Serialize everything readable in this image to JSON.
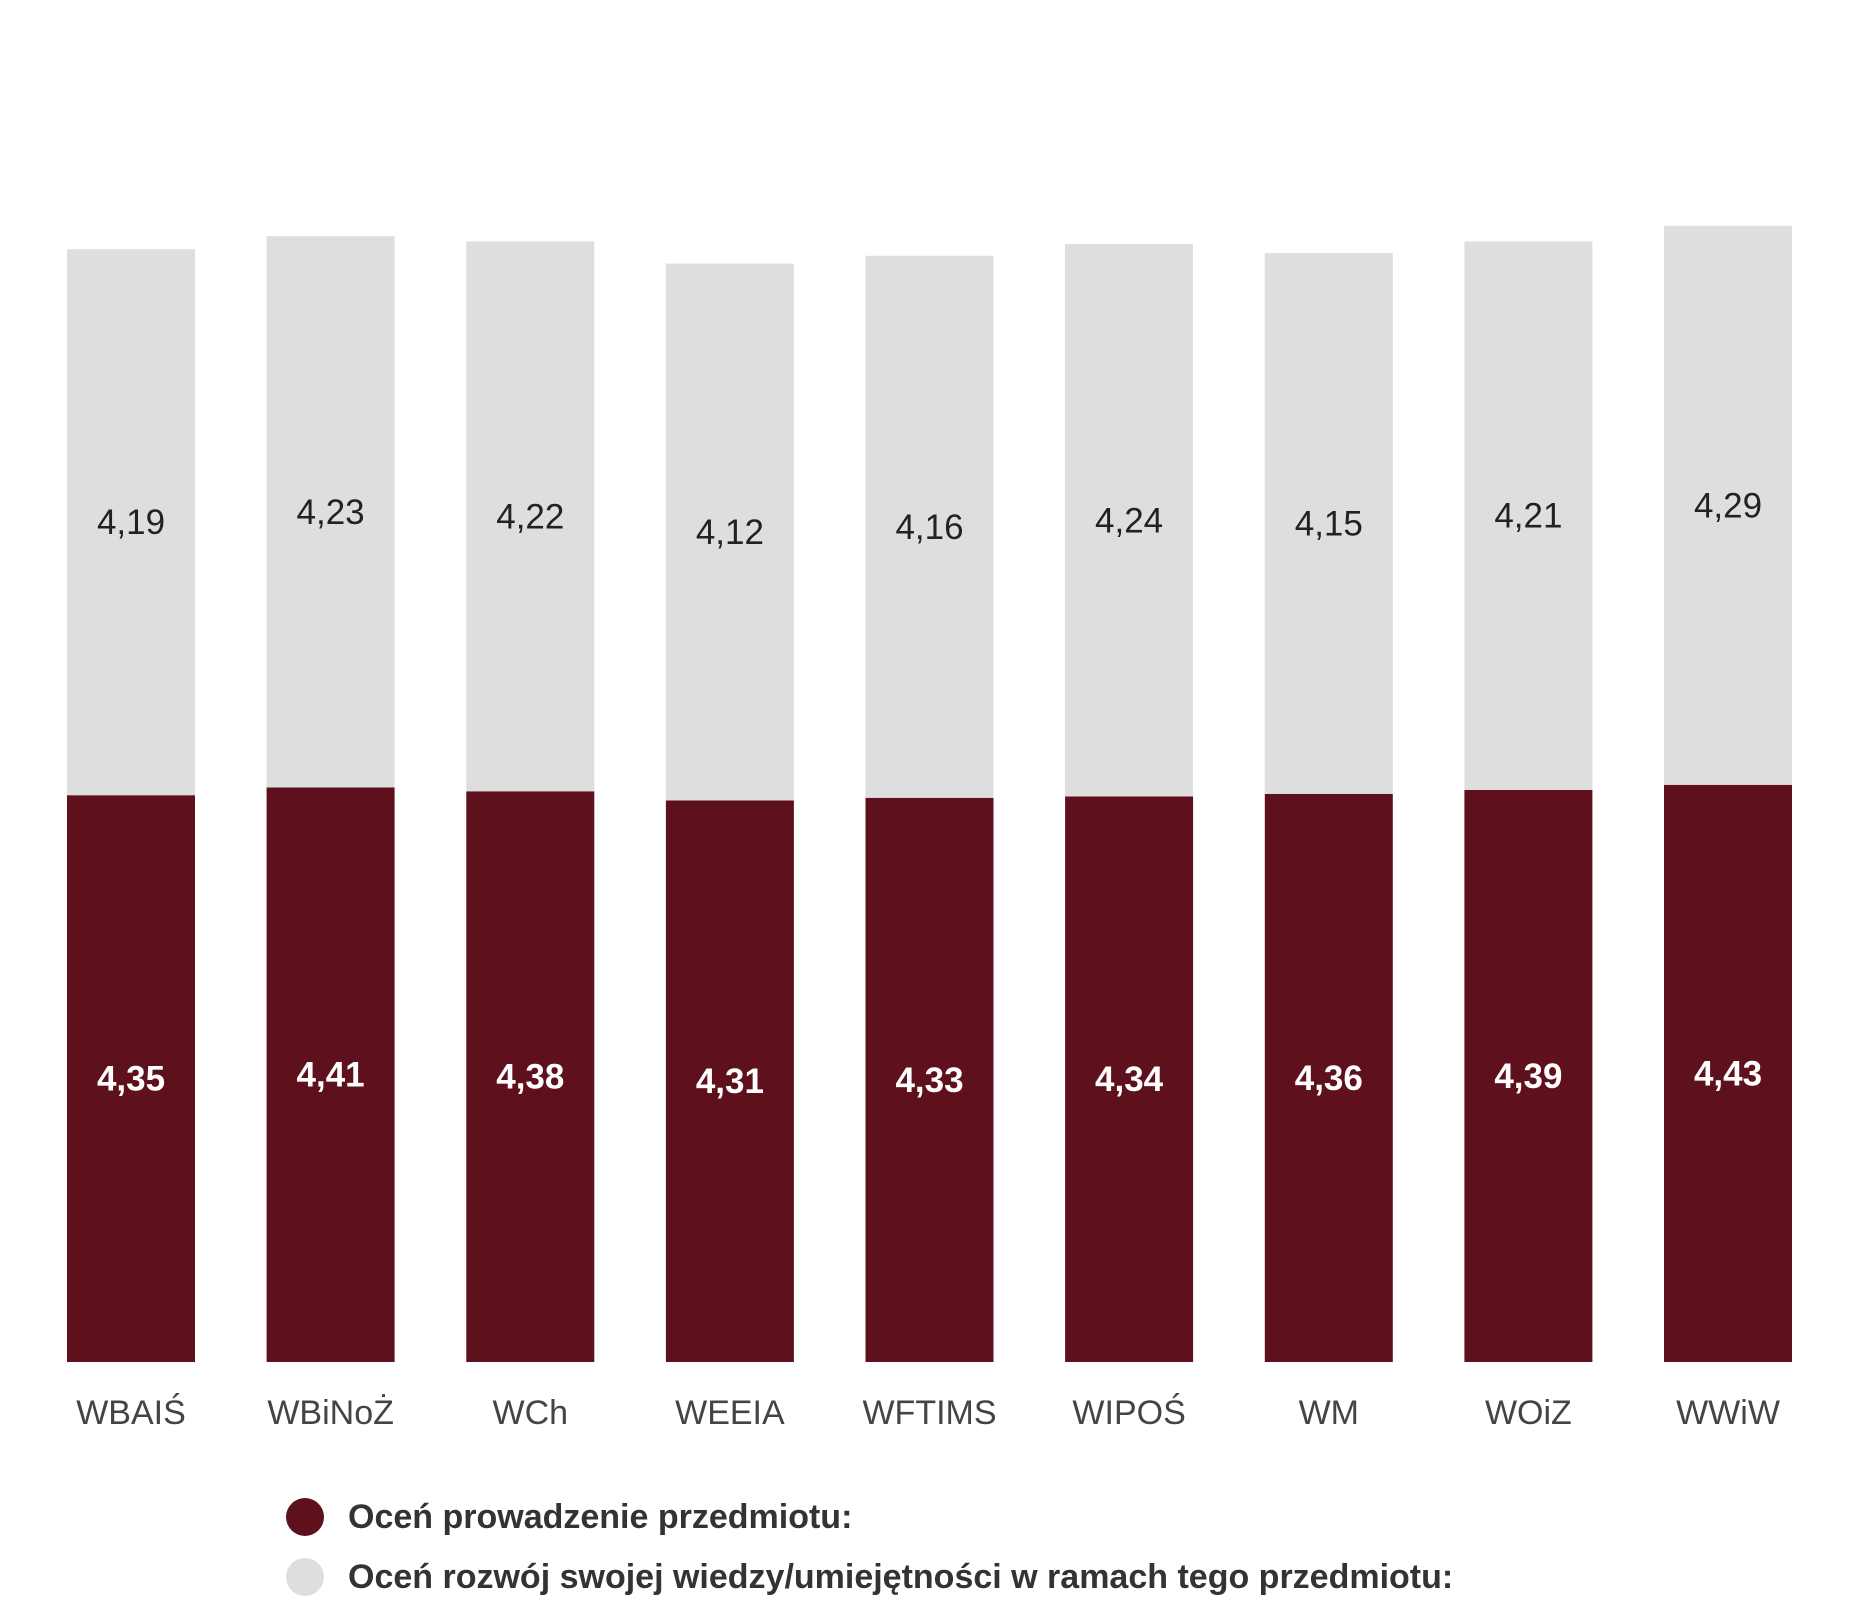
{
  "chart_data": {
    "type": "bar",
    "stacked": true,
    "title": "",
    "xlabel": "",
    "ylabel": "",
    "categories": [
      "WBAIŚ",
      "WBiNoŻ",
      "WCh",
      "WEEIA",
      "WFTIMS",
      "WIPOŚ",
      "WM",
      "WOiZ",
      "WWiW"
    ],
    "series": [
      {
        "name": "Oceń prowadzenie przedmiotu:",
        "color": "#5e101d",
        "label_color": "#ffffff",
        "values": [
          4.35,
          4.41,
          4.38,
          4.31,
          4.33,
          4.34,
          4.36,
          4.39,
          4.43
        ],
        "labels": [
          "4,35",
          "4,41",
          "4,38",
          "4,31",
          "4,33",
          "4,34",
          "4,36",
          "4,39",
          "4,43"
        ]
      },
      {
        "name": "Oceń rozwój swojej wiedzy/umiejętności w ramach tego przedmiotu:",
        "color": "#dedede",
        "label_color": "#222222",
        "values": [
          4.19,
          4.23,
          4.22,
          4.12,
          4.16,
          4.24,
          4.15,
          4.21,
          4.29
        ],
        "labels": [
          "4,19",
          "4,23",
          "4,22",
          "4,12",
          "4,16",
          "4,24",
          "4,15",
          "4,21",
          "4,29"
        ]
      }
    ],
    "grid": false,
    "y_axis_visible": false,
    "legend_position": "bottom-left"
  }
}
